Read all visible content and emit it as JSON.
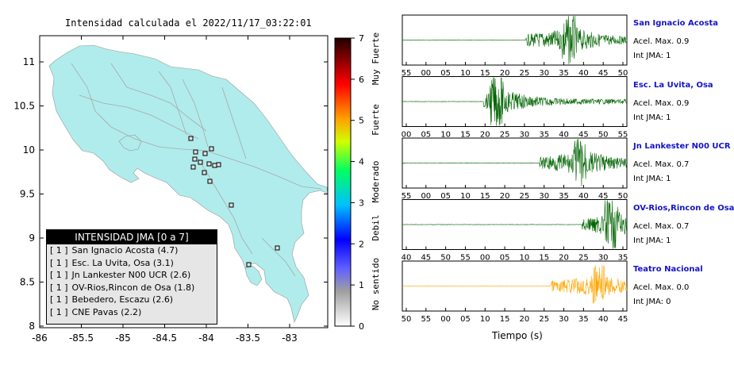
{
  "map": {
    "title": "Intensidad calculada el 2022/11/17_03:22:01",
    "lat_ticks": [
      "11",
      "10.5",
      "10",
      "9.5",
      "9",
      "8.5",
      "8"
    ],
    "lon_ticks": [
      "-86",
      "-85.5",
      "-85",
      "-84.5",
      "-84",
      "-83.5",
      "-83"
    ],
    "colorbar_ticks": [
      "0",
      "1",
      "2",
      "3",
      "4",
      "5",
      "6",
      "7"
    ],
    "colorbar_labels": [
      "No sentido",
      "Debil",
      "Moderado",
      "Fuerte",
      "Muy Fuerte"
    ],
    "legend": {
      "title": "INTENSIDAD JMA [0 a 7]",
      "rows": [
        {
          "level": "[ 1 ]",
          "name": "San Ignacio Acosta (4.7)"
        },
        {
          "level": "[ 1 ]",
          "name": "Esc. La Uvita, Osa (3.1)"
        },
        {
          "level": "[ 1 ]",
          "name": "Jn Lankester N00 UCR (2.6)"
        },
        {
          "level": "[ 1 ]",
          "name": "OV-Rios,Rincon de Osa (1.8)"
        },
        {
          "level": "[ 1 ]",
          "name": "Bebedero, Escazu (2.6)"
        },
        {
          "level": "[ 1 ]",
          "name": "CNE Pavas (2.2)"
        }
      ]
    },
    "colors": {
      "land": "#b0ecec",
      "water": "#ffffff",
      "roads": "#a8a8a8"
    }
  },
  "traces": [
    {
      "name": "San Ignacio Acosta",
      "acel": "Acel. Max. 0.9",
      "jma": "Int JMA: 1",
      "ticks": [
        "55",
        "00",
        "05",
        "10",
        "15",
        "20",
        "25",
        "30",
        "35",
        "40",
        "45",
        "50"
      ],
      "onset": 0.55,
      "peak": 0.74,
      "amp": 1.0,
      "color": "#006400"
    },
    {
      "name": "Esc. La Uvita, Osa",
      "acel": "Acel. Max. 0.9",
      "jma": "Int JMA: 1",
      "ticks": [
        "00",
        "05",
        "10",
        "15",
        "20",
        "25",
        "30",
        "35",
        "40",
        "45",
        "50",
        "55"
      ],
      "onset": 0.36,
      "peak": 0.42,
      "amp": 1.0,
      "color": "#006400"
    },
    {
      "name": "Jn Lankester N00 UCR",
      "acel": "Acel. Max. 0.7",
      "jma": "Int JMA: 1",
      "ticks": [
        "55",
        "00",
        "05",
        "10",
        "15",
        "20",
        "25",
        "30",
        "35",
        "40",
        "45",
        "50"
      ],
      "onset": 0.61,
      "peak": 0.79,
      "amp": 1.0,
      "color": "#006400"
    },
    {
      "name": "OV-Rios,Rincon de Osa",
      "acel": "Acel. Max. 0.7",
      "jma": "Int JMA: 1",
      "ticks": [
        "40",
        "45",
        "50",
        "55",
        "00",
        "05",
        "10",
        "15",
        "20",
        "25",
        "30",
        "35"
      ],
      "onset": 0.8,
      "peak": 0.93,
      "amp": 1.0,
      "color": "#006400"
    },
    {
      "name": "Teatro Nacional",
      "acel": "Acel. Max. 0.0",
      "jma": "Int JMA: 0",
      "ticks": [
        "50",
        "55",
        "00",
        "05",
        "10",
        "15",
        "20",
        "25",
        "30",
        "35",
        "40",
        "45"
      ],
      "onset": 0.66,
      "peak": 0.87,
      "amp": 0.85,
      "color": "#ffa500"
    }
  ],
  "xlabel": "Tiempo (s)"
}
